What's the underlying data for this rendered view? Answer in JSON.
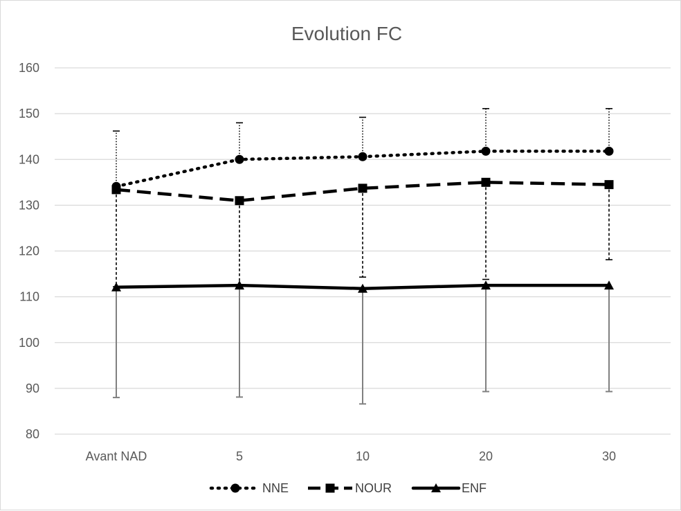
{
  "chart_data": {
    "type": "line",
    "title": "Evolution FC",
    "categories": [
      "Avant NAD",
      "5",
      "10",
      "20",
      "30"
    ],
    "ylim": [
      80,
      160
    ],
    "yticks": [
      80,
      90,
      100,
      110,
      120,
      130,
      140,
      150,
      160
    ],
    "grid": true,
    "legend_position": "bottom",
    "series": [
      {
        "name": "NNE",
        "values": [
          134.1,
          140.0,
          140.6,
          141.8,
          141.8
        ],
        "error_upper": [
          146.2,
          148.0,
          149.2,
          151.1,
          151.1
        ],
        "line_style": "dotted",
        "marker": "circle",
        "color": "#000000",
        "error_color": "#000000"
      },
      {
        "name": "NOUR",
        "values": [
          133.4,
          131.0,
          133.7,
          135.0,
          134.5
        ],
        "error_lower": [
          112.2,
          112.5,
          114.3,
          113.8,
          118.1
        ],
        "line_style": "dashed",
        "marker": "square",
        "color": "#000000",
        "error_color": "#000000"
      },
      {
        "name": "ENF",
        "values": [
          112.1,
          112.5,
          111.8,
          112.5,
          112.5
        ],
        "error_lower": [
          88.0,
          88.1,
          86.6,
          89.3,
          89.3
        ],
        "line_style": "solid",
        "marker": "triangle",
        "color": "#000000",
        "error_color": "#808080"
      }
    ]
  }
}
